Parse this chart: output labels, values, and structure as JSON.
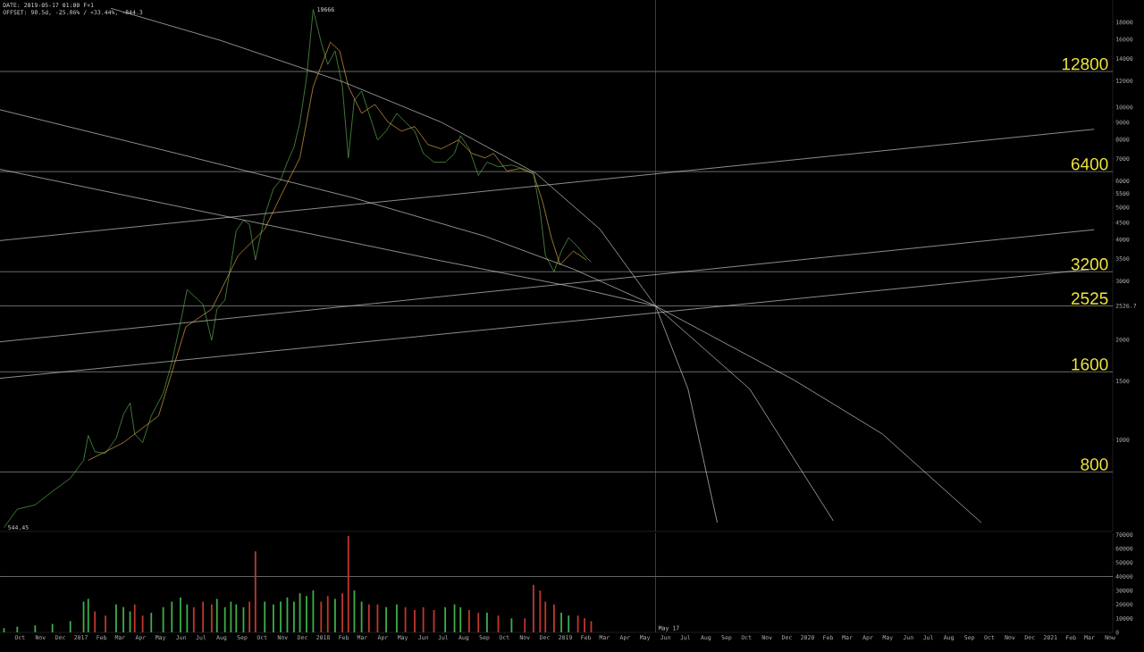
{
  "chart_data": [
    {
      "type": "line",
      "log": "y",
      "xlim": [
        "2016-09-01",
        "2021-04-05"
      ],
      "ylim": [
        530,
        21000
      ],
      "tick_labels": "y",
      "yticks": [
        1000,
        1500,
        2000,
        2526.7,
        3000,
        3500,
        4000,
        4500,
        5000,
        5500,
        6000,
        7000,
        8000,
        9000,
        10000,
        12000,
        14000,
        16000,
        18000
      ],
      "x": [
        "2016-09-07",
        "2016-09-27",
        "2016-10-24",
        "2016-11-19",
        "2016-12-16",
        "2017-01-05",
        "2017-01-12",
        "2017-01-22",
        "2017-02-07",
        "2017-02-23",
        "2017-03-06",
        "2017-03-16",
        "2017-03-23",
        "2017-04-04",
        "2017-04-17",
        "2017-05-05",
        "2017-05-18",
        "2017-05-31",
        "2017-06-10",
        "2017-06-20",
        "2017-07-04",
        "2017-07-17",
        "2017-07-25",
        "2017-08-06",
        "2017-08-15",
        "2017-08-23",
        "2017-09-03",
        "2017-09-12",
        "2017-09-21",
        "2017-10-05",
        "2017-10-18",
        "2017-10-29",
        "2017-11-08",
        "2017-11-18",
        "2017-11-27",
        "2017-12-07",
        "2017-12-17",
        "2017-12-29",
        "2018-01-08",
        "2018-01-19",
        "2018-01-30",
        "2018-02-08",
        "2018-02-17",
        "2018-02-28",
        "2018-03-11",
        "2018-03-24",
        "2018-04-06",
        "2018-04-22",
        "2018-05-05",
        "2018-05-19",
        "2018-06-01",
        "2018-06-17",
        "2018-07-04",
        "2018-07-18",
        "2018-07-27",
        "2018-08-09",
        "2018-08-23",
        "2018-09-05",
        "2018-09-22",
        "2018-10-12",
        "2018-11-01",
        "2018-11-14",
        "2018-11-24",
        "2018-12-02",
        "2018-12-15",
        "2018-12-26",
        "2019-01-06",
        "2019-01-20",
        "2019-01-30",
        "2019-02-09"
      ],
      "series": [
        {
          "color": "#5aa84e",
          "values": [
            544.45,
            618,
            637,
            699,
            766,
            867,
            1030,
            920,
            910,
            1010,
            1190,
            1290,
            1040,
            980,
            1180,
            1380,
            1710,
            2250,
            2830,
            2710,
            2550,
            1990,
            2470,
            2630,
            3360,
            4250,
            4570,
            4440,
            3470,
            4720,
            5680,
            6040,
            6830,
            7580,
            9010,
            12260,
            19666,
            15680,
            13440,
            14750,
            11530,
            7040,
            10510,
            11180,
            9580,
            7970,
            8470,
            9580,
            9010,
            8470,
            7260,
            6830,
            6830,
            7260,
            8210,
            7490,
            6230,
            6830,
            6620,
            6700,
            6500,
            6340,
            4870,
            3580,
            3200,
            3690,
            4050,
            3800,
            3580,
            3420
          ]
        },
        {
          "color": "#d9a441",
          "x": [
            "2017-01-12",
            "2017-03-06",
            "2017-04-28",
            "2017-06-08",
            "2017-07-17",
            "2017-08-26",
            "2017-10-05",
            "2017-10-31",
            "2017-11-27",
            "2017-12-17",
            "2018-01-12",
            "2018-01-26",
            "2018-02-08",
            "2018-02-28",
            "2018-03-20",
            "2018-04-09",
            "2018-04-29",
            "2018-05-19",
            "2018-06-08",
            "2018-06-28",
            "2018-07-24",
            "2018-08-13",
            "2018-09-02",
            "2018-09-15",
            "2018-10-05",
            "2018-10-25",
            "2018-11-14",
            "2018-11-28",
            "2018-12-11",
            "2018-12-24",
            "2019-01-13",
            "2019-02-02"
          ],
          "values": [
            867,
            980,
            1180,
            2185,
            2470,
            3580,
            4300,
            5500,
            7040,
            11530,
            15680,
            14750,
            11530,
            9580,
            10190,
            9010,
            8470,
            8740,
            7720,
            7490,
            7970,
            7260,
            7040,
            7260,
            6420,
            6540,
            6300,
            5180,
            4050,
            3360,
            3690,
            3470
          ]
        },
        {
          "color": "#c8c8c8",
          "x": [
            "2017-02-15",
            "2017-07-30",
            "2018-02-01",
            "2018-06-28",
            "2018-11-17",
            "2019-02-22",
            "2019-05-17",
            "2019-07-05",
            "2019-08-18"
          ],
          "values": [
            19830,
            15880,
            11890,
            9010,
            6340,
            4300,
            2525,
            1420,
            563
          ]
        },
        {
          "color": "#c8c8c8",
          "x": [
            "2016-09-01",
            "2017-05-25",
            "2018-02-15",
            "2018-09-02",
            "2019-01-13",
            "2019-05-17",
            "2019-10-06",
            "2020-02-09"
          ],
          "values": [
            9820,
            7260,
            5340,
            4090,
            3260,
            2525,
            1420,
            570
          ]
        },
        {
          "color": "#c8c8c8",
          "x": [
            "2016-09-01",
            "2017-10-05",
            "2018-06-28",
            "2019-01-13",
            "2019-05-17",
            "2019-12-12",
            "2020-04-23",
            "2020-09-19"
          ],
          "values": [
            6500,
            4440,
            3450,
            2880,
            2525,
            1510,
            1040,
            563
          ]
        },
        {
          "color": "#c8c8c8",
          "x": [
            "2016-09-01",
            "2021-03-08"
          ],
          "values": [
            3970,
            8580
          ]
        },
        {
          "color": "#c8c8c8",
          "x": [
            "2016-09-01",
            "2021-03-08"
          ],
          "values": [
            1970,
            4280
          ]
        },
        {
          "color": "#c8c8c8",
          "x": [
            "2016-09-01",
            "2021-03-08"
          ],
          "values": [
            1530,
            3260
          ]
        }
      ],
      "ref_lines": [
        {
          "axis": "y",
          "value": 12800,
          "label": "12800",
          "color": "#b0b0b0"
        },
        {
          "axis": "y",
          "value": 6400,
          "label": "6400",
          "color": "#b0b0b0"
        },
        {
          "axis": "y",
          "value": 3200,
          "label": "3200",
          "color": "#b0b0b0"
        },
        {
          "axis": "y",
          "value": 2525,
          "label": "2525",
          "color": "#b0b0b0"
        },
        {
          "axis": "y",
          "value": 1600,
          "label": "1600",
          "color": "#b0b0b0"
        },
        {
          "axis": "y",
          "value": 800,
          "label": "800",
          "color": "#b0b0b0"
        },
        {
          "axis": "x",
          "value": "2019-05-17",
          "color": "#6a6a6a"
        }
      ],
      "annotations": [
        "DATE: 2019-05-17 01:00 F+1",
        "OFFSET: 98.5d, -25.86% / +33.44%, -844.3",
        {
          "text": "19666",
          "x": "2017-12-17",
          "y": 19666
        },
        {
          "text": "544.45",
          "x": "2016-09-07",
          "y": 544.45
        }
      ]
    },
    {
      "type": "bar",
      "xlim": [
        "2016-09-01",
        "2021-04-05"
      ],
      "ylim": [
        0,
        71000
      ],
      "yticks": [
        0,
        10000,
        20000,
        30000,
        40000,
        50000,
        60000,
        70000
      ],
      "xticks": [
        {
          "value": "2016-10-01",
          "label": "Oct"
        },
        {
          "value": "2016-11-01",
          "label": "Nov"
        },
        {
          "value": "2016-12-01",
          "label": "Dec"
        },
        {
          "value": "2017-01-01",
          "label": "2017"
        },
        {
          "value": "2017-02-01",
          "label": "Feb"
        },
        {
          "value": "2017-03-01",
          "label": "Mar"
        },
        {
          "value": "2017-04-01",
          "label": "Apr"
        },
        {
          "value": "2017-05-01",
          "label": "May"
        },
        {
          "value": "2017-06-01",
          "label": "Jun"
        },
        {
          "value": "2017-07-01",
          "label": "Jul"
        },
        {
          "value": "2017-08-01",
          "label": "Aug"
        },
        {
          "value": "2017-09-01",
          "label": "Sep"
        },
        {
          "value": "2017-10-01",
          "label": "Oct"
        },
        {
          "value": "2017-11-01",
          "label": "Nov"
        },
        {
          "value": "2017-12-01",
          "label": "Dec"
        },
        {
          "value": "2018-01-01",
          "label": "2018"
        },
        {
          "value": "2018-02-01",
          "label": "Feb"
        },
        {
          "value": "2018-03-01",
          "label": "Mar"
        },
        {
          "value": "2018-04-01",
          "label": "Apr"
        },
        {
          "value": "2018-05-01",
          "label": "May"
        },
        {
          "value": "2018-06-01",
          "label": "Jun"
        },
        {
          "value": "2018-07-01",
          "label": "Jul"
        },
        {
          "value": "2018-08-01",
          "label": "Aug"
        },
        {
          "value": "2018-09-01",
          "label": "Sep"
        },
        {
          "value": "2018-10-01",
          "label": "Oct"
        },
        {
          "value": "2018-11-01",
          "label": "Nov"
        },
        {
          "value": "2018-12-01",
          "label": "Dec"
        },
        {
          "value": "2019-01-01",
          "label": "2019"
        },
        {
          "value": "2019-02-01",
          "label": "Feb"
        },
        {
          "value": "2019-03-01",
          "label": "Mar"
        },
        {
          "value": "2019-04-01",
          "label": "Apr"
        },
        {
          "value": "2019-05-01",
          "label": "May"
        },
        {
          "value": "2019-06-01",
          "label": "Jun"
        },
        {
          "value": "2019-07-01",
          "label": "Jul"
        },
        {
          "value": "2019-08-01",
          "label": "Aug"
        },
        {
          "value": "2019-09-01",
          "label": "Sep"
        },
        {
          "value": "2019-10-01",
          "label": "Oct"
        },
        {
          "value": "2019-11-01",
          "label": "Nov"
        },
        {
          "value": "2019-12-01",
          "label": "Dec"
        },
        {
          "value": "2020-01-01",
          "label": "2020"
        },
        {
          "value": "2020-02-01",
          "label": "Feb"
        },
        {
          "value": "2020-03-01",
          "label": "Mar"
        },
        {
          "value": "2020-04-01",
          "label": "Apr"
        },
        {
          "value": "2020-05-01",
          "label": "May"
        },
        {
          "value": "2020-06-01",
          "label": "Jun"
        },
        {
          "value": "2020-07-01",
          "label": "Jul"
        },
        {
          "value": "2020-08-01",
          "label": "Aug"
        },
        {
          "value": "2020-09-01",
          "label": "Sep"
        },
        {
          "value": "2020-10-01",
          "label": "Oct"
        },
        {
          "value": "2020-11-01",
          "label": "Nov"
        },
        {
          "value": "2020-12-01",
          "label": "Dec"
        },
        {
          "value": "2021-01-01",
          "label": "2021"
        },
        {
          "value": "2021-02-01",
          "label": "Feb"
        },
        {
          "value": "2021-03-01",
          "label": "Mar"
        },
        {
          "value": "2021-04-01",
          "label": "Now"
        }
      ],
      "x": [
        "2016-09-07",
        "2016-09-27",
        "2016-10-24",
        "2016-11-19",
        "2016-12-16",
        "2017-01-05",
        "2017-01-12",
        "2017-01-22",
        "2017-02-07",
        "2017-02-23",
        "2017-03-06",
        "2017-03-16",
        "2017-03-23",
        "2017-04-04",
        "2017-04-17",
        "2017-05-05",
        "2017-05-18",
        "2017-05-31",
        "2017-06-10",
        "2017-06-20",
        "2017-07-04",
        "2017-07-17",
        "2017-07-25",
        "2017-08-06",
        "2017-08-15",
        "2017-08-23",
        "2017-09-03",
        "2017-09-12",
        "2017-09-21",
        "2017-10-05",
        "2017-10-18",
        "2017-10-29",
        "2017-11-08",
        "2017-11-18",
        "2017-11-27",
        "2017-12-07",
        "2017-12-17",
        "2017-12-29",
        "2018-01-08",
        "2018-01-19",
        "2018-01-30",
        "2018-02-08",
        "2018-02-17",
        "2018-02-28",
        "2018-03-11",
        "2018-03-24",
        "2018-04-06",
        "2018-04-22",
        "2018-05-05",
        "2018-05-19",
        "2018-06-01",
        "2018-06-17",
        "2018-07-04",
        "2018-07-18",
        "2018-07-27",
        "2018-08-09",
        "2018-08-23",
        "2018-09-05",
        "2018-09-22",
        "2018-10-12",
        "2018-11-01",
        "2018-11-14",
        "2018-11-24",
        "2018-12-02",
        "2018-12-15",
        "2018-12-26",
        "2019-01-06",
        "2019-01-20",
        "2019-01-30",
        "2019-02-09"
      ],
      "values": [
        3000,
        4000,
        5000,
        6000,
        8000,
        22000,
        24000,
        15000,
        12000,
        20000,
        18000,
        15000,
        20000,
        12000,
        14000,
        18000,
        22000,
        25000,
        20000,
        18000,
        22000,
        20000,
        24000,
        18000,
        22000,
        20000,
        18000,
        22000,
        58000,
        22000,
        20000,
        22000,
        25000,
        22000,
        28000,
        26000,
        30000,
        22000,
        26000,
        24000,
        28000,
        69000,
        30000,
        22000,
        20000,
        20000,
        18000,
        20000,
        18000,
        16000,
        18000,
        16000,
        18000,
        20000,
        18000,
        16000,
        14000,
        14000,
        12000,
        10000,
        10000,
        34000,
        30000,
        22000,
        20000,
        14000,
        12000,
        12000,
        10000,
        8000
      ],
      "colors": [
        "#3fae49",
        "#3fae49",
        "#3fae49",
        "#3fae49",
        "#3fae49",
        "#3fae49",
        "#3fae49",
        "#c0392b",
        "#c0392b",
        "#3fae49",
        "#3fae49",
        "#3fae49",
        "#c0392b",
        "#c0392b",
        "#3fae49",
        "#3fae49",
        "#3fae49",
        "#3fae49",
        "#3fae49",
        "#c0392b",
        "#c0392b",
        "#c0392b",
        "#3fae49",
        "#3fae49",
        "#3fae49",
        "#3fae49",
        "#3fae49",
        "#c0392b",
        "#c0392b",
        "#3fae49",
        "#3fae49",
        "#3fae49",
        "#3fae49",
        "#3fae49",
        "#3fae49",
        "#3fae49",
        "#3fae49",
        "#c0392b",
        "#c0392b",
        "#3fae49",
        "#c0392b",
        "#c0392b",
        "#3fae49",
        "#3fae49",
        "#c0392b",
        "#c0392b",
        "#3fae49",
        "#3fae49",
        "#c0392b",
        "#c0392b",
        "#c0392b",
        "#c0392b",
        "#3fae49",
        "#3fae49",
        "#3fae49",
        "#c0392b",
        "#c0392b",
        "#3fae49",
        "#c0392b",
        "#3fae49",
        "#c0392b",
        "#c0392b",
        "#c0392b",
        "#c0392b",
        "#c0392b",
        "#3fae49",
        "#3fae49",
        "#c0392b",
        "#c0392b",
        "#c0392b"
      ],
      "ref_lines": [
        {
          "axis": "y",
          "value": 40000,
          "color": "#b0b0b0"
        },
        {
          "axis": "x",
          "value": "2019-05-17",
          "label": "May 17",
          "color": "#6a6a6a"
        }
      ]
    }
  ]
}
